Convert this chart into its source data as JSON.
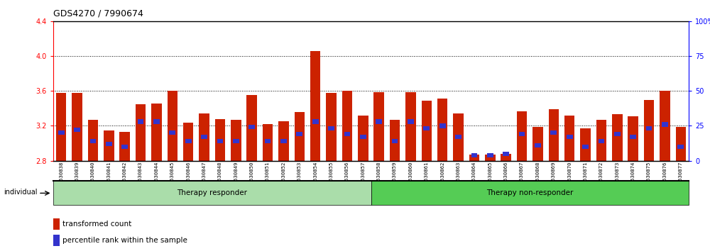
{
  "title": "GDS4270 / 7990674",
  "samples": [
    "GSM530838",
    "GSM530839",
    "GSM530840",
    "GSM530841",
    "GSM530842",
    "GSM530843",
    "GSM530844",
    "GSM530845",
    "GSM530846",
    "GSM530847",
    "GSM530848",
    "GSM530849",
    "GSM530850",
    "GSM530851",
    "GSM530852",
    "GSM530853",
    "GSM530854",
    "GSM530855",
    "GSM530856",
    "GSM530857",
    "GSM530858",
    "GSM530859",
    "GSM530860",
    "GSM530861",
    "GSM530862",
    "GSM530863",
    "GSM530864",
    "GSM530865",
    "GSM530866",
    "GSM530867",
    "GSM530868",
    "GSM530869",
    "GSM530870",
    "GSM530871",
    "GSM530872",
    "GSM530873",
    "GSM530874",
    "GSM530875",
    "GSM530876",
    "GSM530877"
  ],
  "transformed_count": [
    3.58,
    3.58,
    3.27,
    3.15,
    3.13,
    3.45,
    3.46,
    3.6,
    3.24,
    3.34,
    3.28,
    3.27,
    3.55,
    3.22,
    3.25,
    3.36,
    4.06,
    3.58,
    3.6,
    3.32,
    3.59,
    3.27,
    3.59,
    3.49,
    3.51,
    3.34,
    2.87,
    2.87,
    2.88,
    3.37,
    3.19,
    3.39,
    3.32,
    3.17,
    3.27,
    3.33,
    3.31,
    3.5,
    3.6,
    3.19
  ],
  "percentile_values": [
    20,
    22,
    14,
    12,
    10,
    28,
    28,
    20,
    14,
    17,
    14,
    14,
    24,
    14,
    14,
    19,
    28,
    23,
    19,
    17,
    28,
    14,
    28,
    23,
    25,
    17,
    4,
    4,
    5,
    19,
    11,
    20,
    17,
    10,
    14,
    19,
    17,
    23,
    26,
    10
  ],
  "group1_count": 20,
  "group1_label": "Therapy responder",
  "group2_label": "Therapy non-responder",
  "group1_color": "#aaddaa",
  "group2_color": "#55cc55",
  "ymin": 2.8,
  "ymax": 4.4,
  "yticks": [
    2.8,
    3.2,
    3.6,
    4.0,
    4.4
  ],
  "right_yticks": [
    0,
    25,
    50,
    75,
    100
  ],
  "right_yticklabels": [
    "0",
    "25",
    "50",
    "75",
    "100%"
  ],
  "bar_color_red": "#cc2200",
  "bar_color_blue": "#3333cc",
  "title_fontsize": 9,
  "tick_fontsize": 7,
  "label_fontsize": 7.5
}
